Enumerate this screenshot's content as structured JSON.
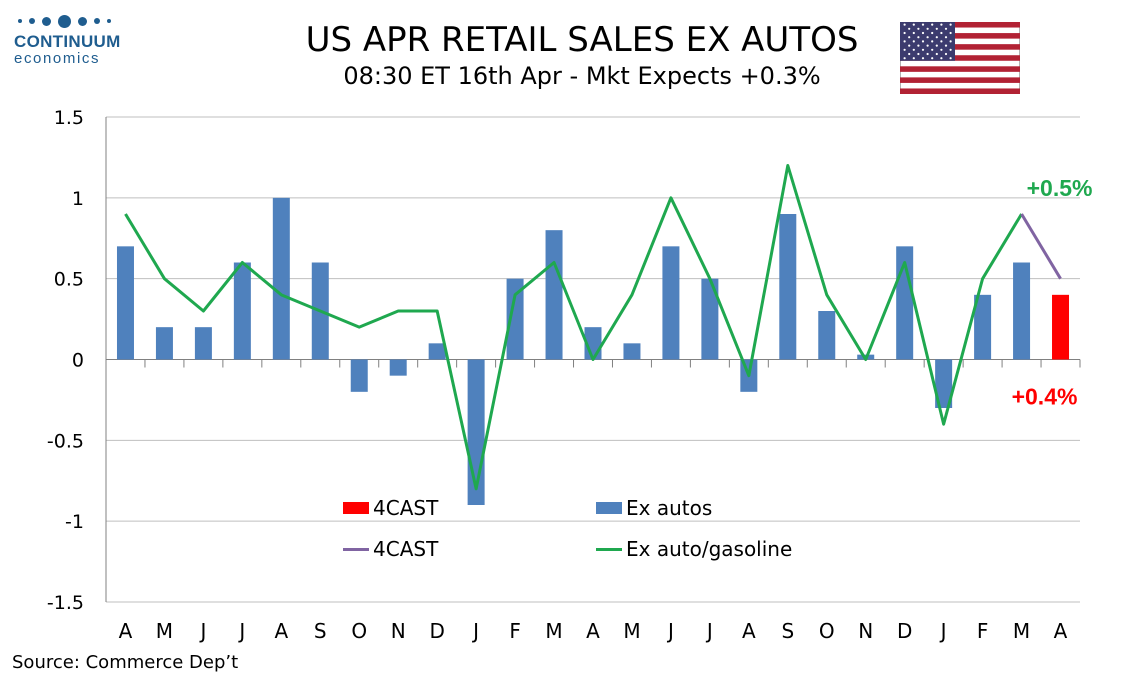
{
  "logo": {
    "name": "CONTINUUM",
    "sub": "economics"
  },
  "title": "US APR RETAIL SALES EX AUTOS",
  "subtitle": "08:30 ET 16th Apr - Mkt Expects +0.3%",
  "source": "Source: Commerce Dep’t",
  "flag_icon": "us-flag-icon",
  "colors": {
    "ex_autos": "#4f81bd",
    "forecast_bar": "#ff0000",
    "ex_auto_gasoline": "#1fa84f",
    "forecast_line": "#8064a2",
    "bar_label": "#ff0000",
    "line_label": "#1fa84f"
  },
  "chart_data": {
    "type": "bar",
    "categories": [
      "A",
      "M",
      "J",
      "J",
      "A",
      "S",
      "O",
      "N",
      "D",
      "J",
      "F",
      "M",
      "A",
      "M",
      "J",
      "J",
      "A",
      "S",
      "O",
      "N",
      "D",
      "J",
      "F",
      "M",
      "A"
    ],
    "ylim": [
      -1.5,
      1.5
    ],
    "yticks": [
      "1.5",
      "1",
      "0.5",
      "0",
      "-0.5",
      "-1",
      "-1.5"
    ],
    "ytick_values": [
      1.5,
      1,
      0.5,
      0,
      -0.5,
      -1,
      -1.5
    ],
    "grid": true,
    "legend_placement": "bottom-center",
    "series": [
      {
        "name": "Ex autos",
        "kind": "bar",
        "values": [
          0.7,
          0.2,
          0.2,
          0.6,
          1.0,
          0.6,
          -0.2,
          -0.1,
          0.1,
          -0.9,
          0.5,
          0.8,
          0.2,
          0.1,
          0.7,
          0.5,
          -0.2,
          0.9,
          0.3,
          0.03,
          0.7,
          -0.3,
          0.4,
          0.6,
          null
        ]
      },
      {
        "name": "4CAST",
        "kind": "bar",
        "values": [
          null,
          null,
          null,
          null,
          null,
          null,
          null,
          null,
          null,
          null,
          null,
          null,
          null,
          null,
          null,
          null,
          null,
          null,
          null,
          null,
          null,
          null,
          null,
          null,
          0.4
        ]
      },
      {
        "name": "Ex auto/gasoline",
        "kind": "line",
        "values": [
          0.9,
          0.5,
          0.3,
          0.6,
          0.4,
          0.3,
          0.2,
          0.3,
          0.3,
          -0.8,
          0.4,
          0.6,
          0.0,
          0.4,
          1.0,
          0.5,
          -0.1,
          1.2,
          0.4,
          0.0,
          0.6,
          -0.4,
          0.5,
          0.9,
          null
        ]
      },
      {
        "name": "4CAST",
        "kind": "line",
        "values": [
          null,
          null,
          null,
          null,
          null,
          null,
          null,
          null,
          null,
          null,
          null,
          null,
          null,
          null,
          null,
          null,
          null,
          null,
          null,
          null,
          null,
          null,
          null,
          0.9,
          0.5
        ]
      }
    ],
    "annotations": [
      {
        "text": "+0.5%",
        "series": "Ex auto/gasoline"
      },
      {
        "text": "+0.4%",
        "series": "4CAST"
      }
    ],
    "legend": [
      "4CAST",
      "Ex autos",
      "4CAST",
      "Ex auto/gasoline"
    ]
  }
}
